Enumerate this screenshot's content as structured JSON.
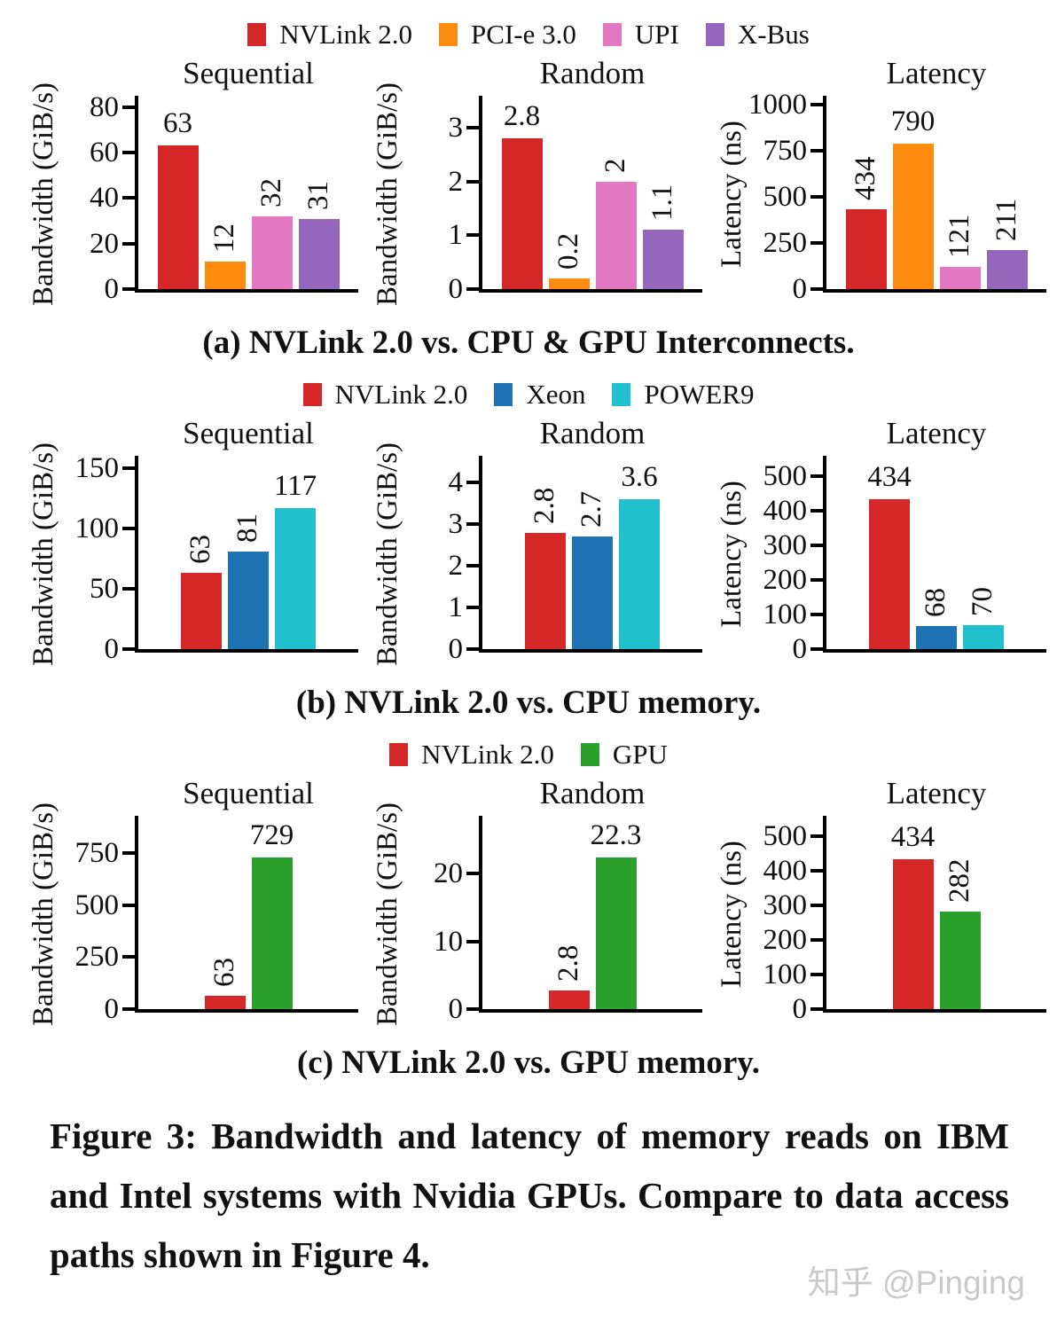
{
  "figure_caption": "Figure 3: Bandwidth and latency of memory reads on IBM and Intel systems with Nvidia GPUs. Compare to data access paths shown in Figure 4.",
  "watermark": "知乎 @Pinging",
  "chart_data": {
    "type": "bar",
    "panels": [
      {
        "id": "a",
        "caption": "(a) NVLink 2.0 vs. CPU & GPU Interconnects.",
        "legend": [
          {
            "label": "NVLink 2.0",
            "color": "#d62728"
          },
          {
            "label": "PCI-e 3.0",
            "color": "#ff8c0e"
          },
          {
            "label": "UPI",
            "color": "#e377c2"
          },
          {
            "label": "X-Bus",
            "color": "#9467bd"
          }
        ],
        "charts": [
          {
            "type": "bar",
            "title": "Sequential",
            "ylabel": "Bandwidth (GiB/s)",
            "yticks": [
              0,
              20,
              40,
              60,
              80
            ],
            "ymax": 85,
            "categories": [
              "NVLink 2.0",
              "PCI-e 3.0",
              "UPI",
              "X-Bus"
            ],
            "values": [
              63,
              12,
              32,
              31
            ],
            "value_labels": [
              "63",
              "12",
              "32",
              "31"
            ],
            "rotated_labels": [
              false,
              true,
              true,
              true
            ]
          },
          {
            "type": "bar",
            "title": "Random",
            "ylabel": "Bandwidth (GiB/s)",
            "yticks": [
              0,
              1,
              2,
              3
            ],
            "ymax": 3.6,
            "categories": [
              "NVLink 2.0",
              "PCI-e 3.0",
              "UPI",
              "X-Bus"
            ],
            "values": [
              2.8,
              0.2,
              2,
              1.1
            ],
            "value_labels": [
              "2.8",
              "0.2",
              "2",
              "1.1"
            ],
            "rotated_labels": [
              false,
              true,
              true,
              true
            ]
          },
          {
            "type": "bar",
            "title": "Latency",
            "ylabel": "Latency (ns)",
            "yticks": [
              0,
              250,
              500,
              750,
              1000
            ],
            "ymax": 1050,
            "categories": [
              "NVLink 2.0",
              "PCI-e 3.0",
              "UPI",
              "X-Bus"
            ],
            "values": [
              434,
              790,
              121,
              211
            ],
            "value_labels": [
              "434",
              "790",
              "121",
              "211"
            ],
            "rotated_labels": [
              true,
              false,
              true,
              true
            ]
          }
        ]
      },
      {
        "id": "b",
        "caption": "(b) NVLink 2.0 vs. CPU memory.",
        "legend": [
          {
            "label": "NVLink 2.0",
            "color": "#d62728"
          },
          {
            "label": "Xeon",
            "color": "#1e73b4"
          },
          {
            "label": "POWER9",
            "color": "#22bfcd"
          }
        ],
        "charts": [
          {
            "type": "bar",
            "title": "Sequential",
            "ylabel": "Bandwidth (GiB/s)",
            "yticks": [
              0,
              50,
              100,
              150
            ],
            "ymax": 160,
            "categories": [
              "NVLink 2.0",
              "Xeon",
              "POWER9"
            ],
            "values": [
              63,
              81,
              117
            ],
            "value_labels": [
              "63",
              "81",
              "117"
            ],
            "rotated_labels": [
              true,
              true,
              false
            ]
          },
          {
            "type": "bar",
            "title": "Random",
            "ylabel": "Bandwidth (GiB/s)",
            "yticks": [
              0,
              1,
              2,
              3,
              4
            ],
            "ymax": 4.65,
            "categories": [
              "NVLink 2.0",
              "Xeon",
              "POWER9"
            ],
            "values": [
              2.8,
              2.7,
              3.6
            ],
            "value_labels": [
              "2.8",
              "2.7",
              "3.6"
            ],
            "rotated_labels": [
              true,
              true,
              false
            ]
          },
          {
            "type": "bar",
            "title": "Latency",
            "ylabel": "Latency (ns)",
            "yticks": [
              0,
              100,
              200,
              300,
              400,
              500
            ],
            "ymax": 560,
            "categories": [
              "NVLink 2.0",
              "Xeon",
              "POWER9"
            ],
            "values": [
              434,
              68,
              70
            ],
            "value_labels": [
              "434",
              "68",
              "70"
            ],
            "rotated_labels": [
              false,
              true,
              true
            ]
          }
        ]
      },
      {
        "id": "c",
        "caption": "(c) NVLink 2.0 vs. GPU memory.",
        "legend": [
          {
            "label": "NVLink 2.0",
            "color": "#d62728"
          },
          {
            "label": "GPU",
            "color": "#2ca02c"
          }
        ],
        "charts": [
          {
            "type": "bar",
            "title": "Sequential",
            "ylabel": "Bandwidth (GiB/s)",
            "yticks": [
              0,
              250,
              500,
              750
            ],
            "ymax": 930,
            "categories": [
              "NVLink 2.0",
              "GPU"
            ],
            "values": [
              63,
              729
            ],
            "value_labels": [
              "63",
              "729"
            ],
            "rotated_labels": [
              true,
              false
            ]
          },
          {
            "type": "bar",
            "title": "Random",
            "ylabel": "Bandwidth (GiB/s)",
            "yticks": [
              0,
              10,
              20
            ],
            "ymax": 28.5,
            "categories": [
              "NVLink 2.0",
              "GPU"
            ],
            "values": [
              2.8,
              22.3
            ],
            "value_labels": [
              "2.8",
              "22.3"
            ],
            "rotated_labels": [
              true,
              false
            ]
          },
          {
            "type": "bar",
            "title": "Latency",
            "ylabel": "Latency (ns)",
            "yticks": [
              0,
              100,
              200,
              300,
              400,
              500
            ],
            "ymax": 560,
            "categories": [
              "NVLink 2.0",
              "GPU"
            ],
            "values": [
              434,
              282
            ],
            "value_labels": [
              "434",
              "282"
            ],
            "rotated_labels": [
              false,
              true
            ]
          }
        ]
      }
    ]
  }
}
